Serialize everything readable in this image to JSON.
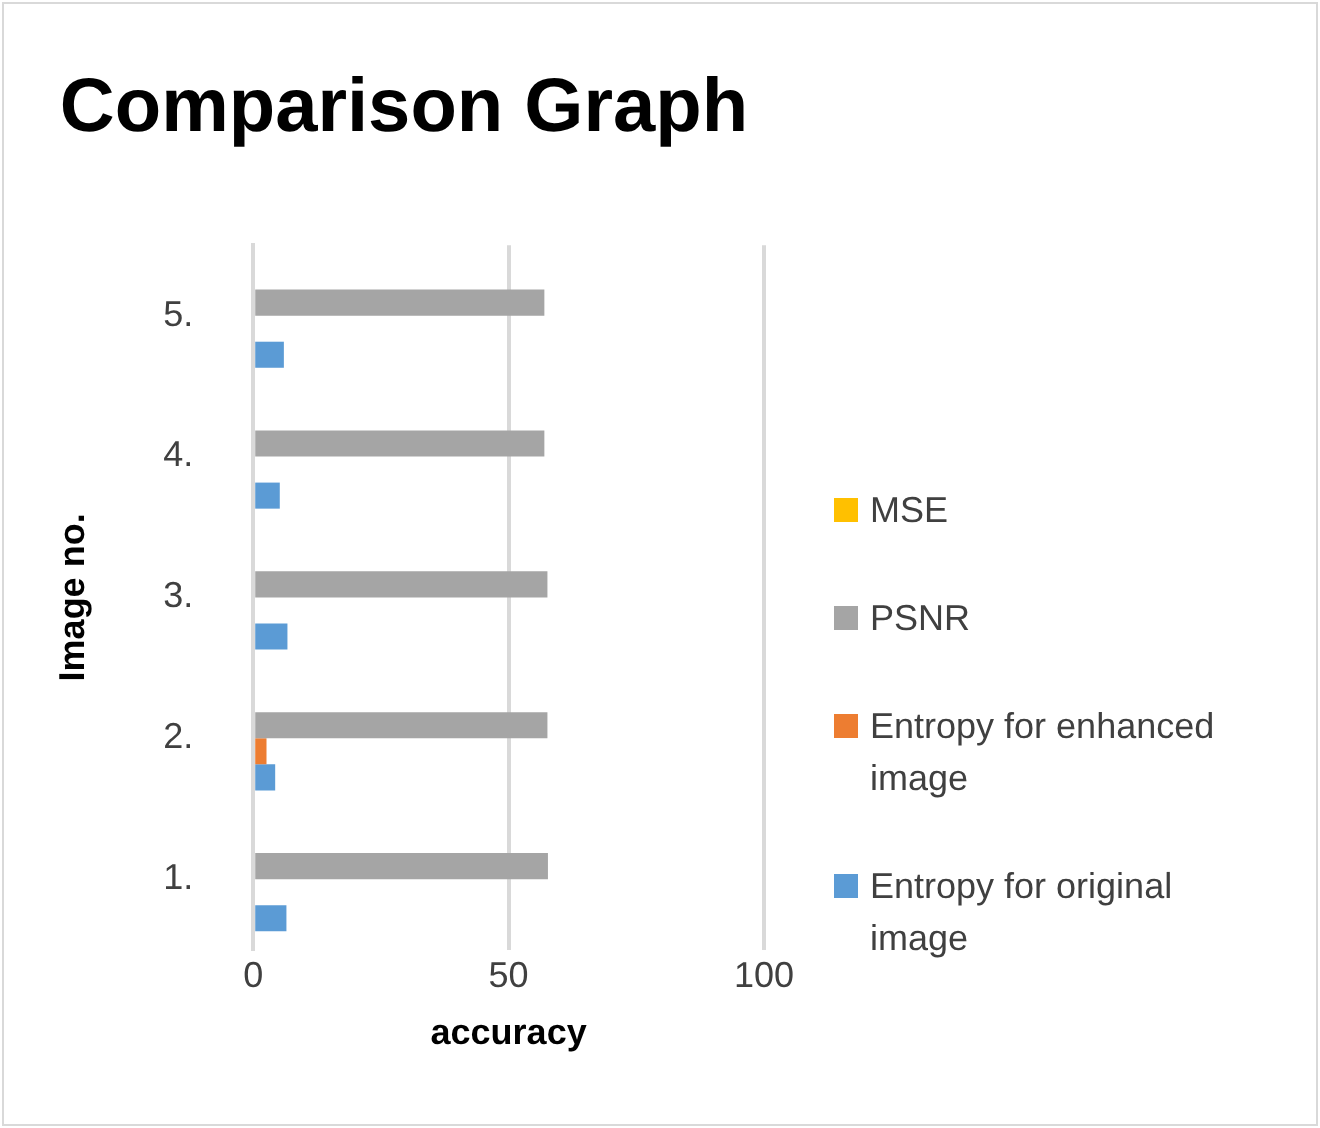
{
  "chart_data": {
    "type": "bar",
    "orientation": "horizontal",
    "title": "Comparison Graph",
    "xlabel": "accuracy",
    "ylabel": "Image no.",
    "categories": [
      "5.",
      "4.",
      "3.",
      "2.",
      "1."
    ],
    "series": [
      {
        "name": "MSE",
        "color": "#ffc000",
        "values": [
          0,
          0,
          0,
          0,
          0
        ]
      },
      {
        "name": "PSNR",
        "color": "#a5a5a5",
        "values": [
          57.0,
          57.0,
          57.6,
          57.6,
          57.7
        ]
      },
      {
        "name": "Entropy for enhanced image",
        "color": "#ed7d31",
        "values": [
          0,
          0,
          0,
          2.6,
          0
        ]
      },
      {
        "name": "Entropy for original image",
        "color": "#5b9bd5",
        "values": [
          6.0,
          5.2,
          6.7,
          4.3,
          6.5
        ]
      }
    ],
    "xlim": [
      0,
      100
    ],
    "xticks": [
      0,
      50,
      100
    ],
    "grid": "x",
    "legend": "right"
  }
}
